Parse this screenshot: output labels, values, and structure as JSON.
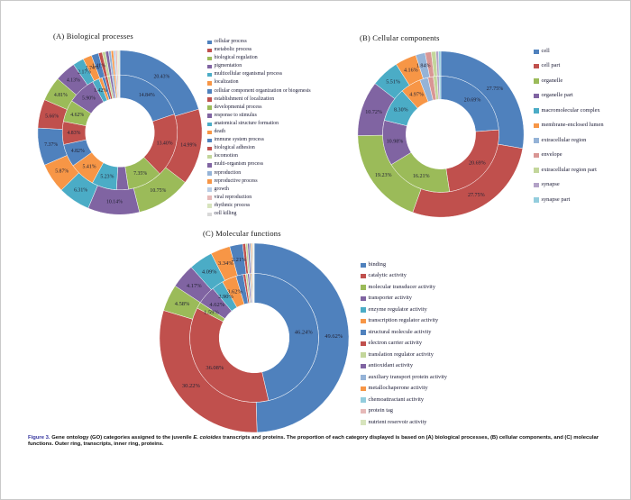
{
  "figure": {
    "caption": {
      "label": "Figure 3.",
      "text_before_italic": " Gene ontology (GO) categories assigned to the juvenile ",
      "italic_species": "E. coioides",
      "text_after_italic": " transcripts and proteins. The proportion of each category displayed is based on (A) biological processes, (B) cellular components, and (C) molecular functions. Outer ring, transcripts, inner ring, proteins."
    }
  },
  "chart_data": [
    {
      "id": "A",
      "type": "pie",
      "subtype": "double-ring-donut",
      "title": "(A) Biological processes",
      "legend_position": "right",
      "ring_order": "outer ring = transcripts, inner ring = proteins",
      "categories": [
        "cellular process",
        "metabolic process",
        "biological regulation",
        "pigmentation",
        "multicellular organismal process",
        "localization",
        "cellular component organization or biogenesis",
        "establishment of localization",
        "developmental process",
        "response to stimulus",
        "anatomical structure formation",
        "death",
        "immune system process",
        "biological adhesion",
        "locomotion",
        "multi-organism process",
        "reproduction",
        "reproductive process",
        "growth",
        "viral reproduction",
        "rhythmic process",
        "cell killing"
      ],
      "colors": [
        "#4F81BD",
        "#C0504D",
        "#9BBB59",
        "#8064A2",
        "#4BACC6",
        "#F79646",
        "#4F81BD",
        "#C0504D",
        "#9BBB59",
        "#8064A2",
        "#4BACC6",
        "#F79646",
        "#4F81BD",
        "#C0504D",
        "#C3D69B",
        "#8064A2",
        "#95B3D7",
        "#F79646",
        "#B9CDE5",
        "#E6B9B8",
        "#D7E4BD",
        "#D9D9D9"
      ],
      "series": [
        {
          "name": "transcripts (outer ring)",
          "values": [
            20.43,
            14.99,
            10.75,
            10.14,
            6.31,
            5.87,
            7.37,
            5.66,
            4.81,
            4.13,
            2.17,
            1.74,
            1.41,
            0.75,
            0.65,
            0.6,
            0.5,
            0.45,
            0.4,
            0.35,
            0.3,
            0.22
          ],
          "labels": [
            "20.43%",
            "14.99%",
            "10.75%",
            "10.14%",
            "6.31%",
            "5.87%",
            "7.37%",
            "5.66%",
            "4.81%",
            "4.13%",
            "2.17%",
            "1.74%",
            "1.41%",
            "",
            "",
            "",
            "",
            "",
            "",
            "",
            "",
            ""
          ]
        },
        {
          "name": "proteins (inner ring)",
          "values": [
            14.84,
            13.4,
            7.35,
            2.5,
            5.23,
            5.41,
            4.82,
            4.83,
            4.62,
            5.9,
            1.42,
            0.7,
            0.6,
            0.55,
            0.5,
            0.45,
            0.4,
            0.35,
            0.3,
            0.25,
            0.2,
            0.15
          ],
          "labels": [
            "14.84%",
            "13.40%",
            "7.35%",
            "",
            "5.23%",
            "5.41%",
            "4.82%",
            "4.83%",
            "4.62%",
            "5.90%",
            "1.42%",
            "",
            "",
            "",
            "",
            "",
            "",
            "",
            "",
            "",
            "",
            ""
          ]
        }
      ]
    },
    {
      "id": "B",
      "type": "pie",
      "subtype": "double-ring-donut",
      "title": "(B) Cellular components",
      "legend_position": "right",
      "ring_order": "outer ring = transcripts, inner ring = proteins",
      "categories": [
        "cell",
        "cell part",
        "organelle",
        "organelle part",
        "macromolecular complex",
        "membrane-enclosed lumen",
        "extracellular region",
        "envelope",
        "extracellular region part",
        "synapse",
        "synapse part"
      ],
      "colors": [
        "#4F81BD",
        "#C0504D",
        "#9BBB59",
        "#8064A2",
        "#4BACC6",
        "#F79646",
        "#95B3D7",
        "#D99694",
        "#C3D69B",
        "#B3A2C7",
        "#93CDDD"
      ],
      "series": [
        {
          "name": "transcripts (outer ring)",
          "values": [
            27.75,
            27.75,
            19.23,
            10.72,
            5.51,
            4.16,
            1.84,
            1.2,
            0.9,
            0.5,
            0.44
          ],
          "labels": [
            "27.75%",
            "27.75%",
            "19.23%",
            "10.72%",
            "5.51%",
            "4.16%",
            "1.84%",
            "",
            "",
            "",
            ""
          ]
        },
        {
          "name": "proteins (inner ring)",
          "values": [
            20.69,
            20.69,
            16.21,
            10.98,
            8.3,
            4.97,
            2.0,
            1.3,
            0.9,
            0.5,
            0.4
          ],
          "labels": [
            "20.69%",
            "20.69%",
            "16.21%",
            "10.98%",
            "8.30%",
            "4.97%",
            "",
            "",
            "",
            "",
            ""
          ]
        }
      ]
    },
    {
      "id": "C",
      "type": "pie",
      "subtype": "double-ring-donut",
      "title": "(C) Molecular functions",
      "legend_position": "right",
      "ring_order": "outer ring = transcripts, inner ring = proteins",
      "categories": [
        "binding",
        "catalytic activity",
        "molecular transducer activity",
        "transporter activity",
        "enzyme regulator activity",
        "transcription regulator activity",
        "structural molecule activity",
        "electron carrier activity",
        "translation regulator activity",
        "antioxidant activity",
        "auxiliary transport protein activity",
        "metallochaperone activity",
        "chemoattractant activity",
        "protein tag",
        "nutrient reservoir activity"
      ],
      "colors": [
        "#4F81BD",
        "#C0504D",
        "#9BBB59",
        "#8064A2",
        "#4BACC6",
        "#F79646",
        "#4F81BD",
        "#C0504D",
        "#C3D69B",
        "#8064A2",
        "#95B3D7",
        "#F79646",
        "#93CDDD",
        "#E6B9B8",
        "#D7E4BD"
      ],
      "series": [
        {
          "name": "transcripts (outer ring)",
          "values": [
            49.62,
            30.22,
            4.58,
            4.17,
            4.09,
            3.34,
            2.21,
            0.5,
            0.35,
            0.3,
            0.25,
            0.2,
            0.15,
            0.12,
            0.1
          ],
          "labels": [
            "49.62%",
            "30.22%",
            "4.58%",
            "4.17%",
            "4.09%",
            "3.34%",
            "2.21%",
            "",
            "",
            "",
            "",
            "",
            "",
            "",
            ""
          ]
        },
        {
          "name": "proteins (inner ring)",
          "values": [
            46.24,
            36.08,
            1.59,
            4.62,
            2.9,
            3.62,
            1.8,
            0.6,
            0.5,
            0.4,
            0.35,
            0.3,
            0.25,
            0.2,
            0.15
          ],
          "labels": [
            "46.24%",
            "36.08%",
            "1.59%",
            "4.62%",
            "2.90%",
            "3.62%",
            "",
            "",
            "",
            "",
            "",
            "",
            "",
            "",
            ""
          ]
        }
      ]
    }
  ]
}
